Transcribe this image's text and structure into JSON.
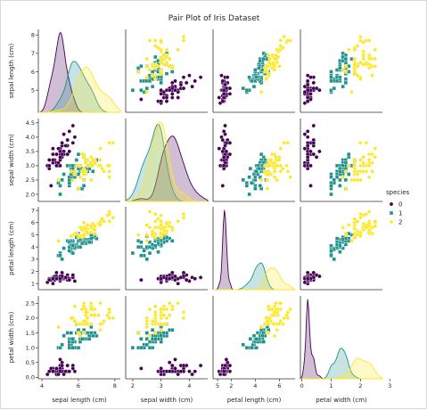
{
  "chart_data": {
    "type": "scatter",
    "title": "Pair Plot of Iris Dataset",
    "variables": [
      "sepal length (cm)",
      "sepal width (cm)",
      "petal length (cm)",
      "petal width (cm)"
    ],
    "diagonal": "kde",
    "hue": "species",
    "legend": {
      "title": "species",
      "placement": "right",
      "labels": [
        "0",
        "1",
        "2"
      ],
      "markers": [
        "circle",
        "square",
        "diamond"
      ],
      "colors": [
        "#440154",
        "#21918c",
        "#fde725"
      ]
    },
    "axis_ranges": [
      [
        3.8,
        8.3
      ],
      [
        1.75,
        4.65
      ],
      [
        0.5,
        7.3
      ],
      [
        -0.05,
        2.75
      ]
    ],
    "ticks": [
      [
        "4",
        "6",
        "8"
      ],
      [
        "2",
        "3",
        "4",
        "5"
      ],
      [
        "2",
        "4",
        "6"
      ],
      [
        "0",
        "1",
        "2",
        "3"
      ]
    ],
    "row_ticks": [
      [
        "5",
        "6",
        "7",
        "8"
      ],
      [
        "2.0",
        "2.5",
        "3.0",
        "3.5",
        "4.0",
        "4.5"
      ],
      [
        "1",
        "2",
        "3",
        "4",
        "5",
        "6",
        "7"
      ],
      [
        "0.0",
        "0.5",
        "1.0",
        "1.5",
        "2.0",
        "2.5"
      ]
    ],
    "grid": false,
    "series": [
      {
        "name": "0",
        "points": [
          [
            5.1,
            3.5,
            1.4,
            0.2
          ],
          [
            4.9,
            3.0,
            1.4,
            0.2
          ],
          [
            4.7,
            3.2,
            1.3,
            0.2
          ],
          [
            4.6,
            3.1,
            1.5,
            0.2
          ],
          [
            5.0,
            3.6,
            1.4,
            0.2
          ],
          [
            5.4,
            3.9,
            1.7,
            0.4
          ],
          [
            4.6,
            3.4,
            1.4,
            0.3
          ],
          [
            5.0,
            3.4,
            1.5,
            0.2
          ],
          [
            4.4,
            2.9,
            1.4,
            0.2
          ],
          [
            4.9,
            3.1,
            1.5,
            0.1
          ],
          [
            5.4,
            3.7,
            1.5,
            0.2
          ],
          [
            4.8,
            3.4,
            1.6,
            0.2
          ],
          [
            4.8,
            3.0,
            1.4,
            0.1
          ],
          [
            4.3,
            3.0,
            1.1,
            0.1
          ],
          [
            5.8,
            4.0,
            1.2,
            0.2
          ],
          [
            5.7,
            4.4,
            1.5,
            0.4
          ],
          [
            5.4,
            3.9,
            1.3,
            0.4
          ],
          [
            5.1,
            3.5,
            1.4,
            0.3
          ],
          [
            5.7,
            3.8,
            1.7,
            0.3
          ],
          [
            5.1,
            3.8,
            1.5,
            0.3
          ],
          [
            5.4,
            3.4,
            1.7,
            0.2
          ],
          [
            5.1,
            3.7,
            1.5,
            0.4
          ],
          [
            4.6,
            3.6,
            1.0,
            0.2
          ],
          [
            5.1,
            3.3,
            1.7,
            0.5
          ],
          [
            4.8,
            3.4,
            1.9,
            0.2
          ],
          [
            5.0,
            3.0,
            1.6,
            0.2
          ],
          [
            5.0,
            3.4,
            1.6,
            0.4
          ],
          [
            5.2,
            3.5,
            1.5,
            0.2
          ],
          [
            5.2,
            3.4,
            1.4,
            0.2
          ],
          [
            4.7,
            3.2,
            1.6,
            0.2
          ],
          [
            4.8,
            3.1,
            1.6,
            0.2
          ],
          [
            5.4,
            3.4,
            1.5,
            0.4
          ],
          [
            5.2,
            4.1,
            1.5,
            0.1
          ],
          [
            5.5,
            4.2,
            1.4,
            0.2
          ],
          [
            4.9,
            3.1,
            1.5,
            0.2
          ],
          [
            5.0,
            3.2,
            1.2,
            0.2
          ],
          [
            5.5,
            3.5,
            1.3,
            0.2
          ],
          [
            4.9,
            3.6,
            1.4,
            0.1
          ],
          [
            4.4,
            3.0,
            1.3,
            0.2
          ],
          [
            5.1,
            3.4,
            1.5,
            0.2
          ],
          [
            5.0,
            3.5,
            1.3,
            0.3
          ],
          [
            4.5,
            2.3,
            1.3,
            0.3
          ],
          [
            4.4,
            3.2,
            1.3,
            0.2
          ],
          [
            5.0,
            3.5,
            1.6,
            0.6
          ],
          [
            5.1,
            3.8,
            1.9,
            0.4
          ],
          [
            4.8,
            3.0,
            1.4,
            0.3
          ],
          [
            5.1,
            3.8,
            1.6,
            0.2
          ],
          [
            4.6,
            3.2,
            1.4,
            0.2
          ],
          [
            5.3,
            3.7,
            1.5,
            0.2
          ],
          [
            5.0,
            3.3,
            1.4,
            0.2
          ]
        ]
      },
      {
        "name": "1",
        "points": [
          [
            7.0,
            3.2,
            4.7,
            1.4
          ],
          [
            6.4,
            3.2,
            4.5,
            1.5
          ],
          [
            6.9,
            3.1,
            4.9,
            1.5
          ],
          [
            5.5,
            2.3,
            4.0,
            1.3
          ],
          [
            6.5,
            2.8,
            4.6,
            1.5
          ],
          [
            5.7,
            2.8,
            4.5,
            1.3
          ],
          [
            6.3,
            3.3,
            4.7,
            1.6
          ],
          [
            4.9,
            2.4,
            3.3,
            1.0
          ],
          [
            6.6,
            2.9,
            4.6,
            1.3
          ],
          [
            5.2,
            2.7,
            3.9,
            1.4
          ],
          [
            5.0,
            2.0,
            3.5,
            1.0
          ],
          [
            5.9,
            3.0,
            4.2,
            1.5
          ],
          [
            6.0,
            2.2,
            4.0,
            1.0
          ],
          [
            6.1,
            2.9,
            4.7,
            1.4
          ],
          [
            5.6,
            2.9,
            3.6,
            1.3
          ],
          [
            6.7,
            3.1,
            4.4,
            1.4
          ],
          [
            5.6,
            3.0,
            4.5,
            1.5
          ],
          [
            5.8,
            2.7,
            4.1,
            1.0
          ],
          [
            6.2,
            2.2,
            4.5,
            1.5
          ],
          [
            5.6,
            2.5,
            3.9,
            1.1
          ],
          [
            5.9,
            3.2,
            4.8,
            1.8
          ],
          [
            6.1,
            2.8,
            4.0,
            1.3
          ],
          [
            6.3,
            2.5,
            4.9,
            1.5
          ],
          [
            6.1,
            2.8,
            4.7,
            1.2
          ],
          [
            6.4,
            2.9,
            4.3,
            1.3
          ],
          [
            6.6,
            3.0,
            4.4,
            1.4
          ],
          [
            6.8,
            2.8,
            4.8,
            1.4
          ],
          [
            6.7,
            3.0,
            5.0,
            1.7
          ],
          [
            6.0,
            2.9,
            4.5,
            1.5
          ],
          [
            5.7,
            2.6,
            3.5,
            1.0
          ],
          [
            5.5,
            2.4,
            3.8,
            1.1
          ],
          [
            5.5,
            2.4,
            3.7,
            1.0
          ],
          [
            5.8,
            2.7,
            3.9,
            1.2
          ],
          [
            6.0,
            2.7,
            5.1,
            1.6
          ],
          [
            5.4,
            3.0,
            4.5,
            1.5
          ],
          [
            6.0,
            3.4,
            4.5,
            1.6
          ],
          [
            6.7,
            3.1,
            4.7,
            1.5
          ],
          [
            6.3,
            2.3,
            4.4,
            1.3
          ],
          [
            5.6,
            3.0,
            4.1,
            1.3
          ],
          [
            5.5,
            2.5,
            4.0,
            1.3
          ],
          [
            5.5,
            2.6,
            4.4,
            1.2
          ],
          [
            6.1,
            3.0,
            4.6,
            1.4
          ],
          [
            5.8,
            2.6,
            4.0,
            1.2
          ],
          [
            5.0,
            2.3,
            3.3,
            1.0
          ],
          [
            5.6,
            2.7,
            4.2,
            1.3
          ],
          [
            5.7,
            3.0,
            4.2,
            1.2
          ],
          [
            5.7,
            2.9,
            4.2,
            1.3
          ],
          [
            6.2,
            2.9,
            4.3,
            1.3
          ],
          [
            5.1,
            2.5,
            3.0,
            1.1
          ],
          [
            5.7,
            2.8,
            4.1,
            1.3
          ]
        ]
      },
      {
        "name": "2",
        "points": [
          [
            6.3,
            3.3,
            6.0,
            2.5
          ],
          [
            5.8,
            2.7,
            5.1,
            1.9
          ],
          [
            7.1,
            3.0,
            5.9,
            2.1
          ],
          [
            6.3,
            2.9,
            5.6,
            1.8
          ],
          [
            6.5,
            3.0,
            5.8,
            2.2
          ],
          [
            7.6,
            3.0,
            6.6,
            2.1
          ],
          [
            4.9,
            2.5,
            4.5,
            1.7
          ],
          [
            7.3,
            2.9,
            6.3,
            1.8
          ],
          [
            6.7,
            2.5,
            5.8,
            1.8
          ],
          [
            7.2,
            3.6,
            6.1,
            2.5
          ],
          [
            6.5,
            3.2,
            5.1,
            2.0
          ],
          [
            6.4,
            2.7,
            5.3,
            1.9
          ],
          [
            6.8,
            3.0,
            5.5,
            2.1
          ],
          [
            5.7,
            2.5,
            5.0,
            2.0
          ],
          [
            5.8,
            2.8,
            5.1,
            2.4
          ],
          [
            6.4,
            3.2,
            5.3,
            2.3
          ],
          [
            6.5,
            3.0,
            5.5,
            1.8
          ],
          [
            7.7,
            3.8,
            6.7,
            2.2
          ],
          [
            7.7,
            2.6,
            6.9,
            2.3
          ],
          [
            6.0,
            2.2,
            5.0,
            1.5
          ],
          [
            6.9,
            3.2,
            5.7,
            2.3
          ],
          [
            5.6,
            2.8,
            4.9,
            2.0
          ],
          [
            7.7,
            2.8,
            6.7,
            2.0
          ],
          [
            6.3,
            2.7,
            4.9,
            1.8
          ],
          [
            6.7,
            3.3,
            5.7,
            2.1
          ],
          [
            7.2,
            3.2,
            6.0,
            1.8
          ],
          [
            6.2,
            2.8,
            4.8,
            1.8
          ],
          [
            6.1,
            3.0,
            4.9,
            1.8
          ],
          [
            6.4,
            2.8,
            5.6,
            2.1
          ],
          [
            7.2,
            3.0,
            5.8,
            1.6
          ],
          [
            7.4,
            2.8,
            6.1,
            1.9
          ],
          [
            7.9,
            3.8,
            6.4,
            2.0
          ],
          [
            6.4,
            2.8,
            5.6,
            2.2
          ],
          [
            6.3,
            2.8,
            5.1,
            1.5
          ],
          [
            6.1,
            2.6,
            5.6,
            1.4
          ],
          [
            7.7,
            3.0,
            6.1,
            2.3
          ],
          [
            6.3,
            3.4,
            5.6,
            2.4
          ],
          [
            6.4,
            3.1,
            5.5,
            1.8
          ],
          [
            6.0,
            3.0,
            4.8,
            1.8
          ],
          [
            6.9,
            3.1,
            5.4,
            2.1
          ],
          [
            6.7,
            3.1,
            5.6,
            2.4
          ],
          [
            6.9,
            3.1,
            5.1,
            2.3
          ],
          [
            5.8,
            2.7,
            5.1,
            1.9
          ],
          [
            6.8,
            3.2,
            5.9,
            2.3
          ],
          [
            6.7,
            3.3,
            5.7,
            2.5
          ],
          [
            6.7,
            3.0,
            5.2,
            2.3
          ],
          [
            6.3,
            2.5,
            5.0,
            1.9
          ],
          [
            6.5,
            3.0,
            5.2,
            2.0
          ],
          [
            6.2,
            3.4,
            5.4,
            2.3
          ],
          [
            5.9,
            3.0,
            5.1,
            1.8
          ]
        ]
      }
    ]
  }
}
